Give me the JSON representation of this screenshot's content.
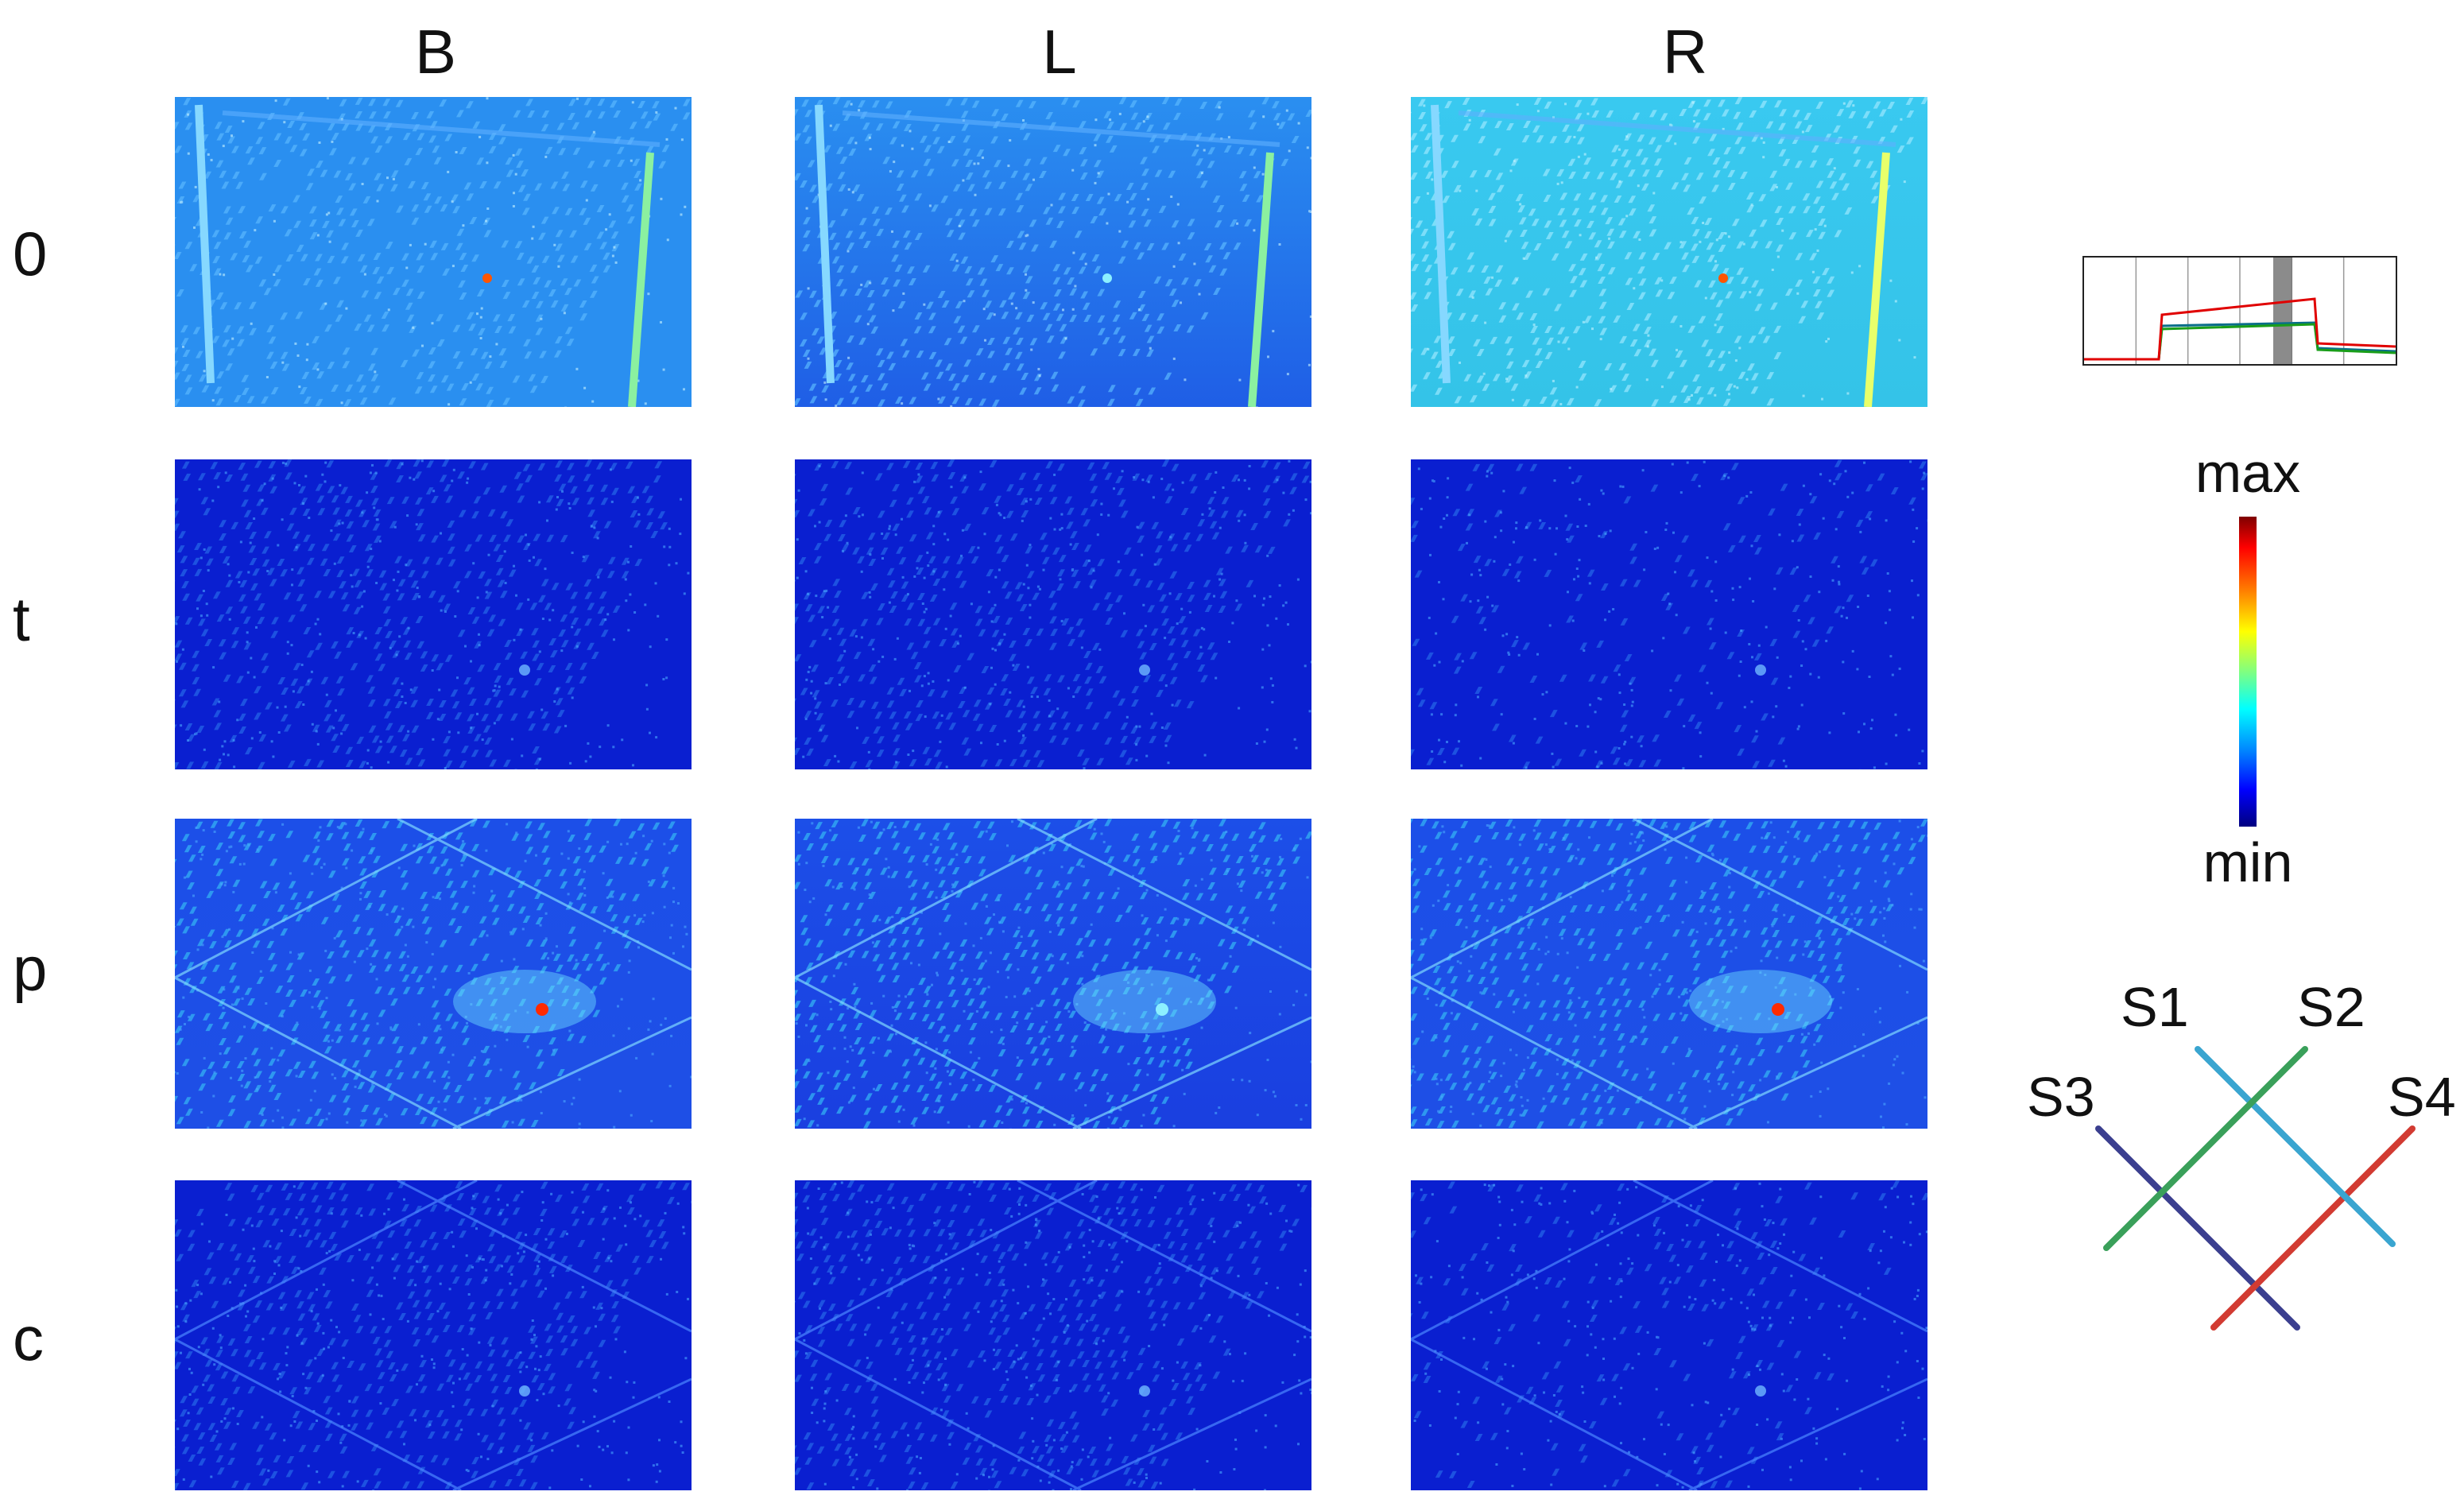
{
  "columns": [
    {
      "label": "B"
    },
    {
      "label": "L"
    },
    {
      "label": "R"
    }
  ],
  "rows": [
    {
      "label": "0",
      "variant": "base"
    },
    {
      "label": "t",
      "variant": "texture"
    },
    {
      "label": "p",
      "variant": "bright"
    },
    {
      "label": "c",
      "variant": "cross"
    }
  ],
  "colorbar": {
    "max_label": "max",
    "min_label": "min",
    "colors": [
      "#7f0000",
      "#ff0000",
      "#ff8000",
      "#ffff00",
      "#80ff80",
      "#00ffff",
      "#0080ff",
      "#0000ff",
      "#00007f"
    ]
  },
  "inset_chart": {
    "grid_lines": 5,
    "highlight_band": true,
    "series_colors": {
      "top": "#e00000",
      "middle": "#1a9e1a",
      "lower": "#0a6e8a"
    }
  },
  "strips": [
    {
      "label": "S1",
      "color": "#3aa5d0"
    },
    {
      "label": "S2",
      "color": "#3aa05a"
    },
    {
      "label": "S3",
      "color": "#3b3f8f"
    },
    {
      "label": "S4",
      "color": "#d23b32"
    }
  ]
}
